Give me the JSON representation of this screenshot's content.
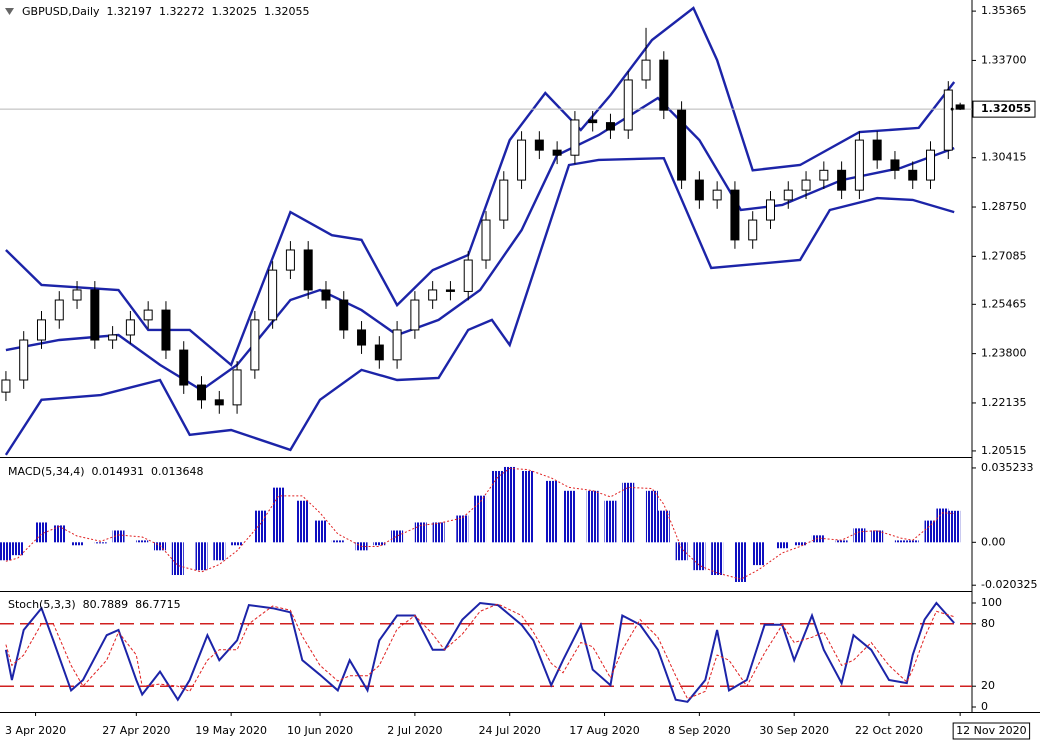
{
  "chart_data": [
    {
      "type": "candlestick",
      "title": "GBPUSD,Daily",
      "xlim": [
        -1,
        163
      ],
      "ylim": [
        1.2031,
        1.3574
      ],
      "x": [
        0,
        3,
        6,
        9,
        12,
        15,
        18,
        21,
        24,
        27,
        30,
        33,
        36,
        39,
        42,
        45,
        48,
        51,
        54,
        57,
        60,
        63,
        66,
        69,
        72,
        75,
        78,
        81,
        84,
        87,
        90,
        93,
        96,
        99,
        102,
        105,
        108,
        111,
        114,
        117,
        120,
        123,
        126,
        129,
        132,
        135,
        138,
        141,
        144,
        147,
        150,
        153,
        156,
        159,
        161
      ],
      "open": [
        1.225,
        1.2291,
        1.2426,
        1.2494,
        1.2561,
        1.2595,
        1.2426,
        1.2443,
        1.2494,
        1.2527,
        1.2392,
        1.2274,
        1.2224,
        1.2207,
        1.2325,
        1.2494,
        1.2662,
        1.273,
        1.2595,
        1.2561,
        1.246,
        1.2409,
        1.2359,
        1.246,
        1.2561,
        1.2595,
        1.259,
        1.2696,
        1.2831,
        1.2966,
        1.3101,
        1.3067,
        1.305,
        1.3169,
        1.316,
        1.3135,
        1.3304,
        1.3371,
        1.3202,
        1.2966,
        1.2899,
        1.2932,
        1.2764,
        1.2831,
        1.2899,
        1.2932,
        1.2966,
        1.2999,
        1.2932,
        1.3101,
        1.3034,
        1.2999,
        1.2966,
        1.3067,
        1.32197
      ],
      "high": [
        1.2321,
        1.2456,
        1.2524,
        1.2591,
        1.2625,
        1.2625,
        1.2473,
        1.2524,
        1.2557,
        1.2557,
        1.2422,
        1.2304,
        1.2254,
        1.2355,
        1.2524,
        1.2692,
        1.276,
        1.276,
        1.2625,
        1.2591,
        1.249,
        1.2439,
        1.249,
        1.2591,
        1.2625,
        1.2625,
        1.2726,
        1.2861,
        1.2996,
        1.3131,
        1.3131,
        1.3097,
        1.3199,
        1.3199,
        1.319,
        1.3334,
        1.348,
        1.3401,
        1.3232,
        1.2996,
        1.2962,
        1.2962,
        1.2861,
        1.2929,
        1.2962,
        1.2996,
        1.3029,
        1.3029,
        1.3131,
        1.3131,
        1.3064,
        1.3029,
        1.3097,
        1.33,
        1.32272
      ],
      "low": [
        1.222,
        1.2261,
        1.2396,
        1.2464,
        1.2531,
        1.2396,
        1.2396,
        1.2413,
        1.2464,
        1.2362,
        1.2244,
        1.2194,
        1.2177,
        1.2177,
        1.2295,
        1.2464,
        1.2632,
        1.2565,
        1.2531,
        1.243,
        1.2379,
        1.2329,
        1.2329,
        1.243,
        1.2531,
        1.256,
        1.256,
        1.2666,
        1.2801,
        1.2936,
        1.3037,
        1.302,
        1.302,
        1.313,
        1.3105,
        1.3105,
        1.3274,
        1.3172,
        1.2936,
        1.2869,
        1.2869,
        1.2734,
        1.2734,
        1.2801,
        1.2869,
        1.2902,
        1.2936,
        1.2902,
        1.2902,
        1.3004,
        1.2969,
        1.2936,
        1.2936,
        1.3037,
        1.32025
      ],
      "close": [
        1.2291,
        1.2426,
        1.2494,
        1.2561,
        1.2595,
        1.2426,
        1.2443,
        1.2494,
        1.2527,
        1.2392,
        1.2274,
        1.2224,
        1.2207,
        1.2325,
        1.2494,
        1.2662,
        1.273,
        1.2595,
        1.2561,
        1.246,
        1.2409,
        1.2359,
        1.246,
        1.2561,
        1.2595,
        1.259,
        1.2696,
        1.2831,
        1.2966,
        1.3101,
        1.3067,
        1.305,
        1.3169,
        1.316,
        1.3135,
        1.3304,
        1.3371,
        1.3202,
        1.2966,
        1.2899,
        1.2932,
        1.2764,
        1.2831,
        1.2899,
        1.2932,
        1.2966,
        1.2999,
        1.2932,
        1.3101,
        1.3034,
        1.2999,
        1.2966,
        1.3067,
        1.327,
        1.32055
      ],
      "up_color": "#ffffff",
      "down_color": "#000000",
      "wick_color": "#000000",
      "line_color": "#1c24a8",
      "lines": [
        {
          "x": [
            0,
            6,
            19,
            24,
            31,
            38,
            48,
            55,
            60,
            66,
            72,
            78,
            85,
            91,
            97,
            102,
            109,
            116,
            120,
            126,
            134,
            144,
            154,
            160
          ],
          "values": [
            1.273,
            1.2612,
            1.2595,
            1.246,
            1.246,
            1.2342,
            1.2858,
            1.278,
            1.2764,
            1.2544,
            1.2662,
            1.2713,
            1.3101,
            1.326,
            1.3135,
            1.3253,
            1.3439,
            1.3547,
            1.3371,
            1.2999,
            1.3017,
            1.3128,
            1.3142,
            1.3297
          ]
        },
        {
          "x": [
            0,
            9,
            19,
            26,
            33,
            39,
            48,
            53,
            60,
            66,
            73,
            80,
            87,
            93,
            100,
            110,
            117,
            124,
            131,
            141,
            151,
            160
          ],
          "values": [
            1.2392,
            1.2426,
            1.2443,
            1.2342,
            1.2257,
            1.2342,
            1.2561,
            1.2595,
            1.2527,
            1.2443,
            1.2494,
            1.2595,
            1.2797,
            1.305,
            1.3118,
            1.3243,
            1.3101,
            1.2865,
            1.2882,
            1.2966,
            1.3007,
            1.3074
          ]
        },
        {
          "x": [
            0,
            6,
            16,
            26,
            31,
            38,
            48,
            53,
            60,
            66,
            73,
            78,
            82,
            85,
            95,
            100,
            111,
            119,
            134,
            139,
            147,
            153,
            160
          ],
          "values": [
            1.2038,
            1.2224,
            1.224,
            1.2291,
            1.2106,
            1.2122,
            1.2055,
            1.2224,
            1.2325,
            1.2291,
            1.2298,
            1.246,
            1.2494,
            1.2409,
            1.3017,
            1.3034,
            1.304,
            1.2669,
            1.2696,
            1.2865,
            1.2905,
            1.2899,
            1.2858
          ]
        }
      ],
      "last_line_color": "#b8b8b8",
      "yticks": [
        1.35365,
        {
          "value": 1.337,
          "label": "1.33700"
        },
        1.30415,
        {
          "value": 1.2875,
          "label": "1.28750"
        },
        1.27085,
        1.25465,
        {
          "value": 1.238,
          "label": "1.23800"
        },
        1.22135,
        1.20515
      ]
    },
    {
      "type": "bar",
      "title": "MACD(5,34,4)",
      "xlim": [
        -1,
        163
      ],
      "ylim": [
        -0.0226,
        0.039
      ],
      "x": [
        0,
        2,
        6,
        9,
        12,
        16,
        19,
        23,
        26,
        29,
        33,
        36,
        39,
        43,
        46,
        50,
        53,
        56,
        60,
        63,
        66,
        70,
        73,
        77,
        80,
        83,
        85,
        88,
        92,
        95,
        99,
        102,
        105,
        109,
        111,
        114,
        117,
        120,
        124,
        127,
        131,
        134,
        137,
        141,
        144,
        147,
        151,
        153,
        156,
        158,
        160
      ],
      "values": [
        -0.0085,
        -0.0061,
        0.0094,
        0.008,
        -0.0014,
        -0.0005,
        0.0056,
        0.0009,
        -0.0038,
        -0.0155,
        -0.0132,
        -0.0085,
        -0.0014,
        0.015,
        0.0259,
        0.0197,
        0.0103,
        0.0009,
        -0.0038,
        -0.0014,
        0.0056,
        0.0094,
        0.0094,
        0.0127,
        0.0221,
        0.0338,
        0.0357,
        0.0338,
        0.0291,
        0.0244,
        0.0244,
        0.0197,
        0.0282,
        0.0244,
        0.015,
        -0.0085,
        -0.0132,
        -0.0155,
        -0.0188,
        -0.0108,
        -0.0028,
        -0.0014,
        0.0033,
        0.0009,
        0.0066,
        0.0056,
        0.0009,
        0.0009,
        0.0103,
        0.016,
        0.014931
      ],
      "color": "#1010c0",
      "signal": {
        "color": "#e02020",
        "values": [
          -0.009,
          -0.0075,
          0.004,
          0.0075,
          0.003,
          0.0005,
          0.0035,
          0.0025,
          -0.0015,
          -0.011,
          -0.014,
          -0.0105,
          -0.004,
          0.009,
          0.022,
          0.022,
          0.014,
          0.004,
          -0.002,
          -0.002,
          0.003,
          0.008,
          0.009,
          0.0115,
          0.019,
          0.031,
          0.035,
          0.0345,
          0.0305,
          0.026,
          0.0245,
          0.0215,
          0.026,
          0.0255,
          0.018,
          -0.003,
          -0.011,
          -0.0145,
          -0.0175,
          -0.013,
          -0.005,
          -0.002,
          0.002,
          0.001,
          0.005,
          0.0055,
          0.002,
          0.001,
          0.008,
          0.014,
          0.013648
        ]
      },
      "yticks": [
        0.035233,
        {
          "value": 0,
          "label": "0.00"
        },
        -0.020325
      ]
    },
    {
      "type": "line",
      "title": "Stoch(5,3,3)",
      "xlim": [
        -1,
        163
      ],
      "ylim": [
        -4.8,
        109.6
      ],
      "x": [
        0,
        1,
        3,
        6,
        8,
        11,
        13,
        17,
        19,
        22,
        23,
        26,
        29,
        31,
        34,
        36,
        39,
        41,
        45,
        48,
        50,
        53,
        56,
        58,
        61,
        63,
        66,
        69,
        72,
        74,
        77,
        80,
        83,
        87,
        89,
        92,
        94,
        97,
        99,
        102,
        104,
        107,
        110,
        113,
        115,
        118,
        120,
        122,
        125,
        128,
        131,
        133,
        136,
        138,
        141,
        143,
        146,
        149,
        152,
        153,
        155,
        157,
        160
      ],
      "lines": [
        {
          "color": "#1c24a8",
          "width": 2,
          "values": [
            55,
            26,
            74,
            95,
            64,
            16,
            26,
            69,
            74,
            26,
            12,
            34,
            7,
            26,
            69,
            45,
            64,
            98,
            95,
            91,
            45,
            31,
            16,
            45,
            16,
            64,
            88,
            88,
            55,
            55,
            84,
            100,
            98,
            79,
            64,
            21,
            45,
            79,
            36,
            21,
            88,
            79,
            55,
            7,
            5,
            26,
            74,
            16,
            26,
            79,
            79,
            45,
            88,
            55,
            23,
            69,
            55,
            26,
            23,
            50,
            84,
            100,
            80.7889
          ]
        },
        {
          "color": "#e02020",
          "width": 1,
          "dash": "3 2",
          "values": [
            60,
            40,
            50,
            80,
            80,
            40,
            20,
            45,
            72,
            50,
            20,
            22,
            20,
            15,
            45,
            55,
            55,
            80,
            97,
            93,
            68,
            40,
            25,
            30,
            30,
            40,
            75,
            88,
            70,
            55,
            70,
            92,
            99,
            88,
            72,
            42,
            33,
            62,
            58,
            28,
            55,
            84,
            67,
            30,
            8,
            15,
            50,
            45,
            20,
            52,
            79,
            62,
            67,
            72,
            40,
            45,
            62,
            40,
            24,
            36,
            67,
            92,
            86.7715
          ]
        }
      ],
      "levels": [
        80,
        20
      ],
      "level_color": "#d02020",
      "yticks": [
        100,
        80,
        20,
        0
      ],
      "xticks": [
        {
          "value": 5,
          "label": "3 Apr 2020"
        },
        {
          "value": 22,
          "label": "27 Apr 2020"
        },
        {
          "value": 38,
          "label": "19 May 2020"
        },
        {
          "value": 53,
          "label": "10 Jun 2020"
        },
        {
          "value": 69,
          "label": "2 Jul 2020"
        },
        {
          "value": 85,
          "label": "24 Jul 2020"
        },
        {
          "value": 101,
          "label": "17 Aug 2020"
        },
        {
          "value": 117,
          "label": "8 Sep 2020"
        },
        {
          "value": 133,
          "label": "30 Sep 2020"
        },
        {
          "value": 149,
          "label": "22 Oct 2020"
        },
        {
          "value": 161,
          "label": "12 Nov 2020"
        }
      ]
    }
  ]
}
